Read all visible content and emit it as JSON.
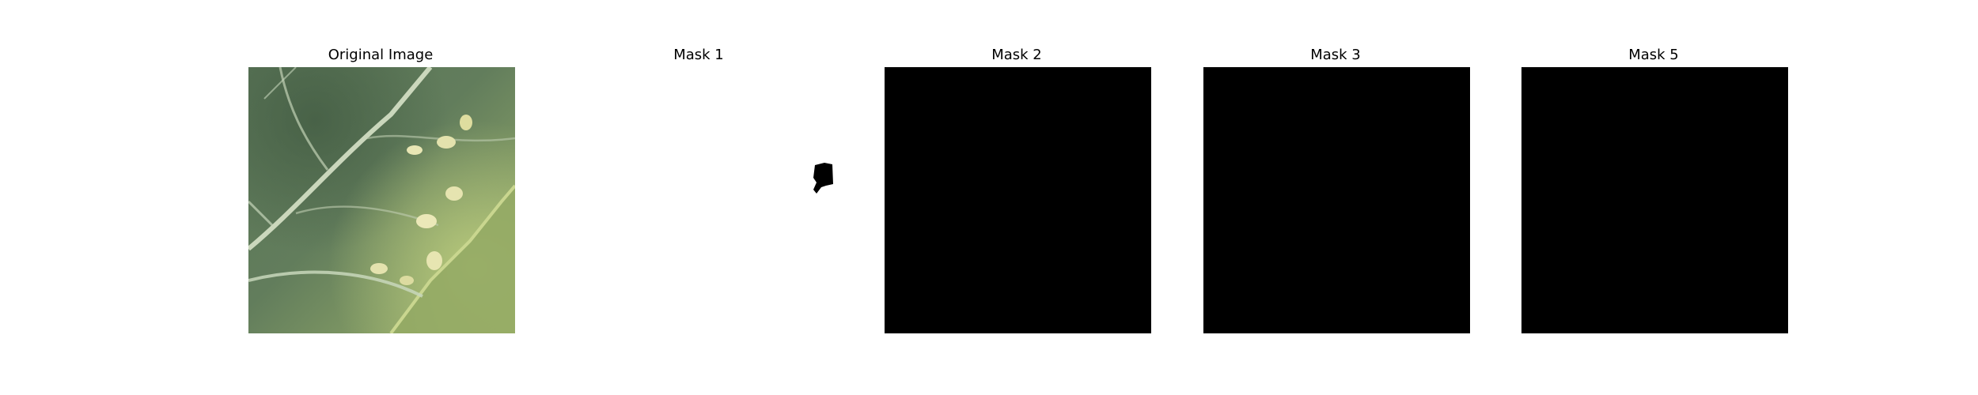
{
  "figure": {
    "panels": [
      {
        "title": "Original Image",
        "content": "leaf-photo"
      },
      {
        "title": "Mask 1",
        "content": "mostly-white-mask"
      },
      {
        "title": "Mask 2",
        "content": "all-black-mask"
      },
      {
        "title": "Mask 3",
        "content": "all-black-mask"
      },
      {
        "title": "Mask 5",
        "content": "all-black-mask"
      }
    ]
  },
  "colors": {
    "background": "#ffffff",
    "mask_black": "#000000",
    "leaf_dark": "#4f6b4e",
    "leaf_mid": "#6f8a62",
    "leaf_light": "#a9bb72",
    "lesion": "#e3e2ad"
  }
}
